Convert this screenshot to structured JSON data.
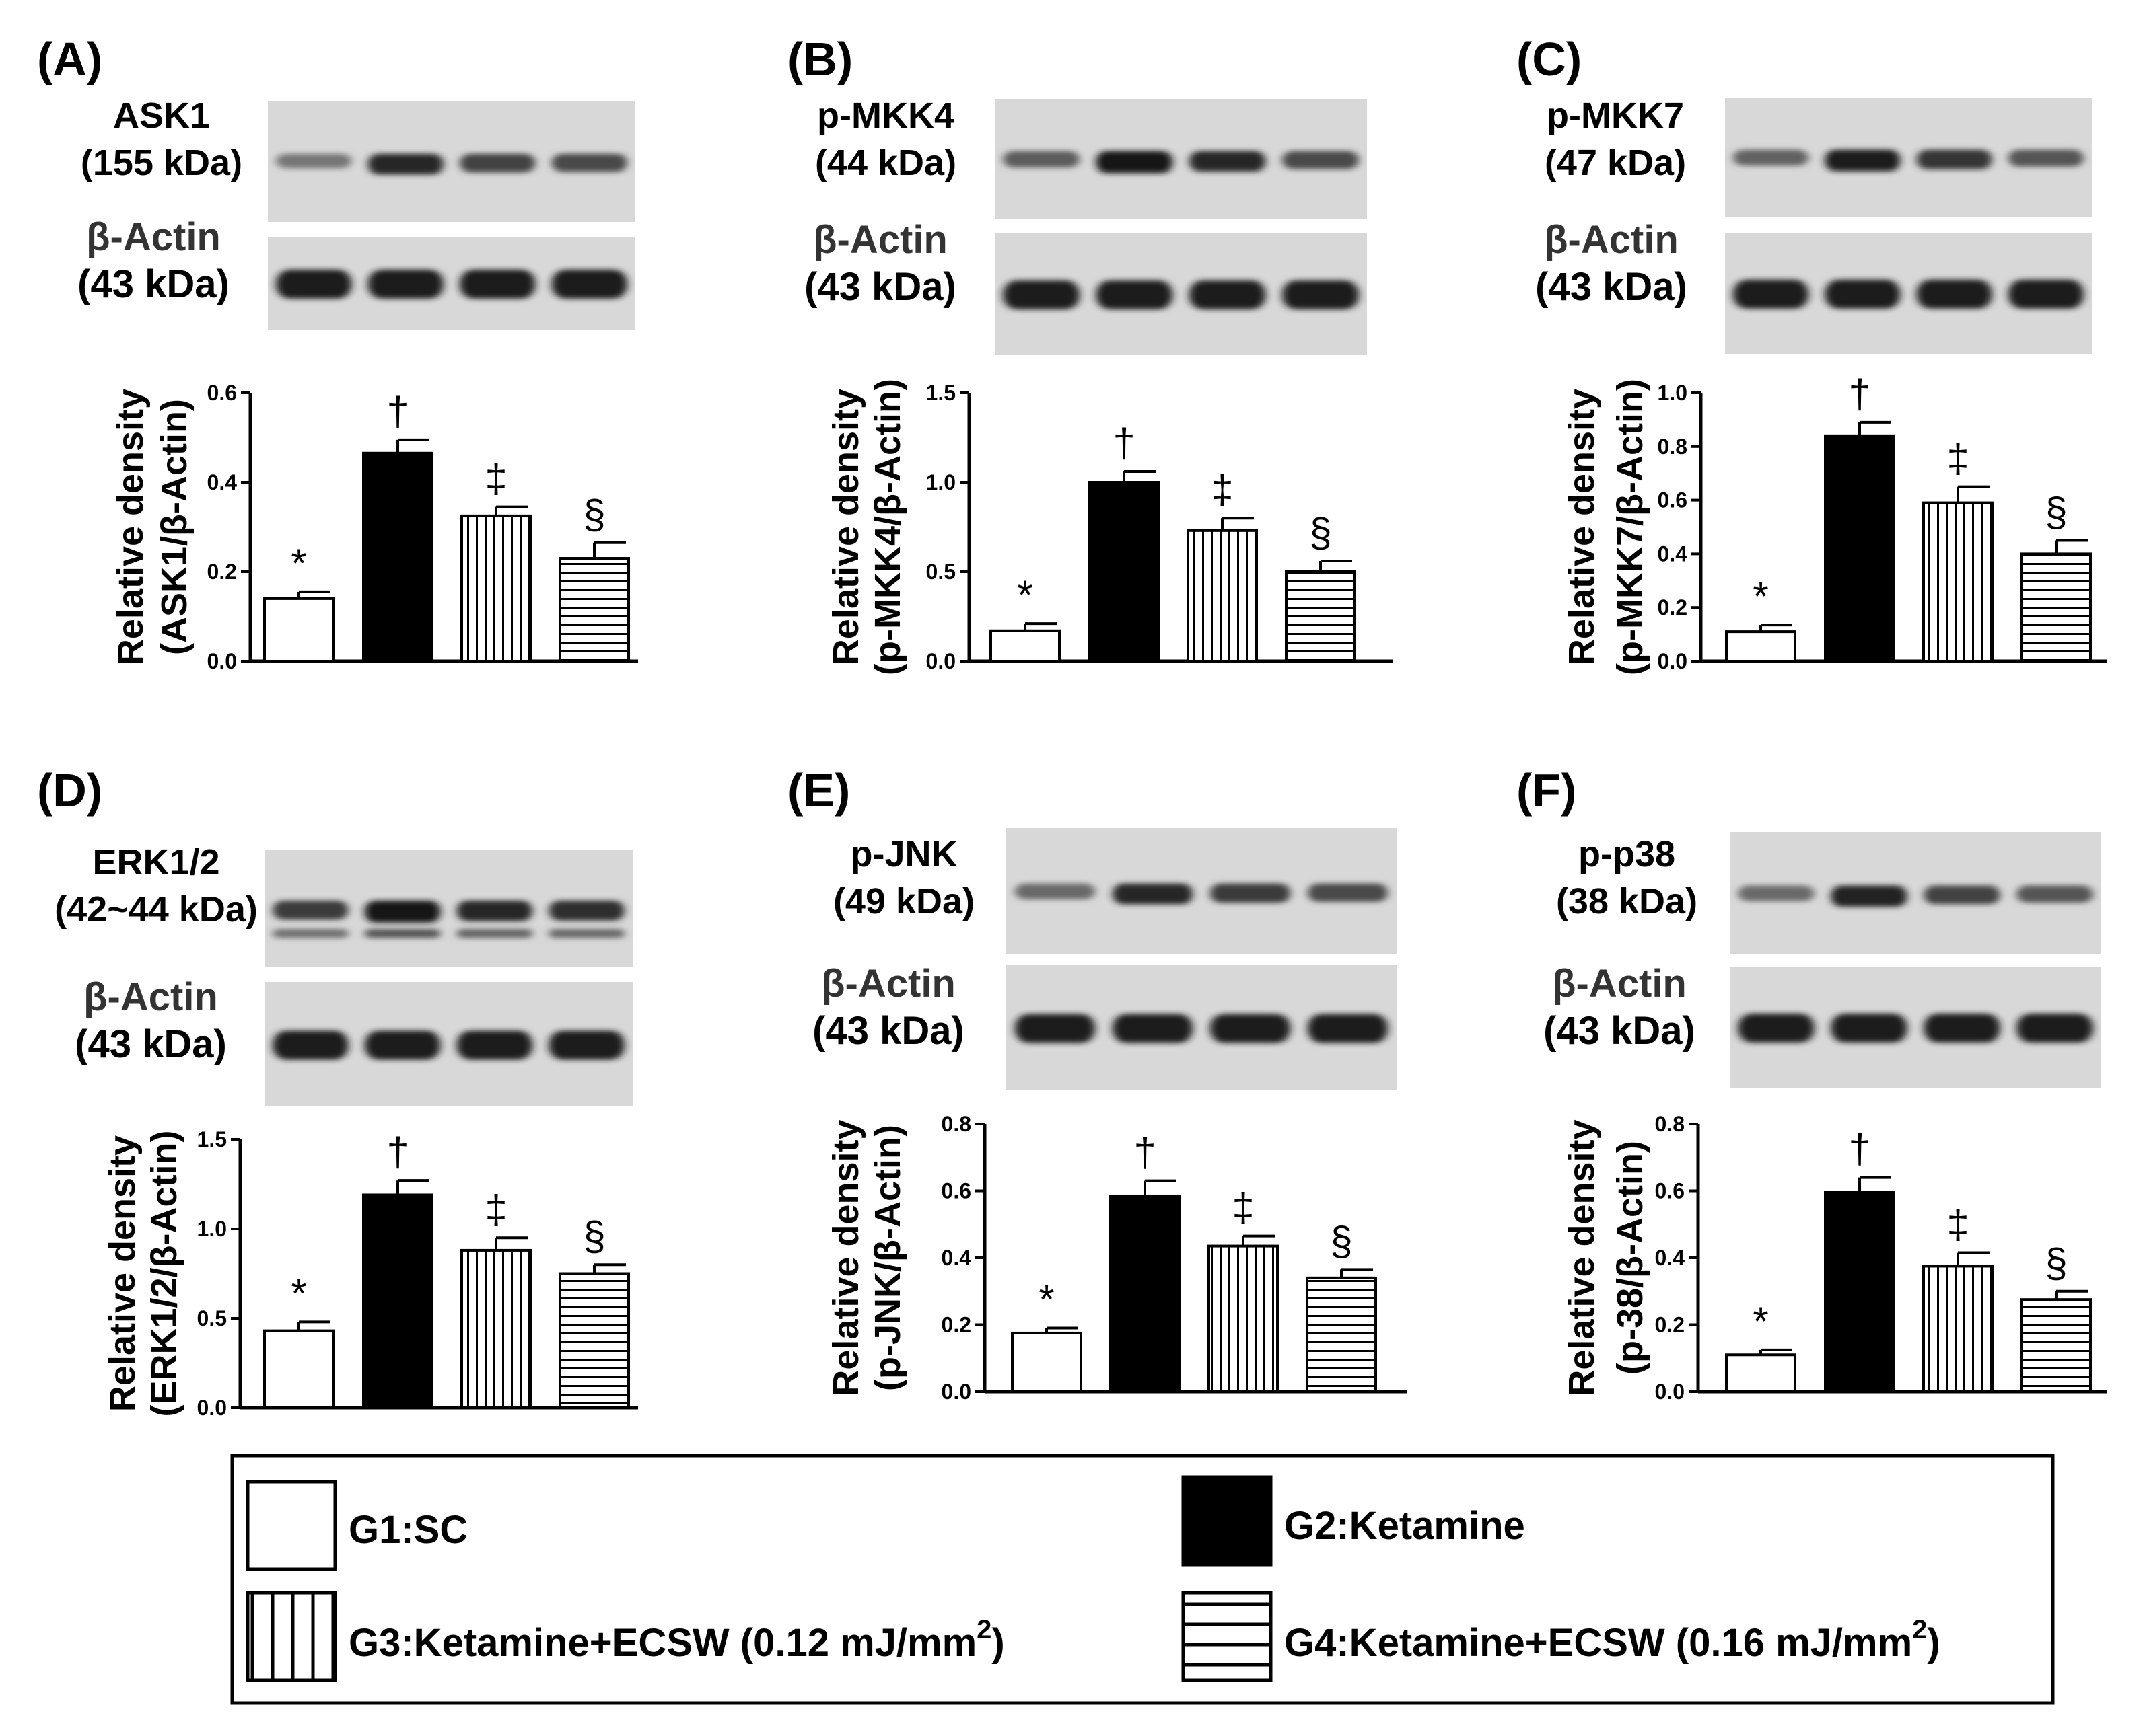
{
  "legend": {
    "items": [
      {
        "id": "g1",
        "label": "G1:SC",
        "pattern": "white"
      },
      {
        "id": "g2",
        "label": "G2:Ketamine",
        "pattern": "black"
      },
      {
        "id": "g3",
        "label_main": "G3:Ketamine+ECSW (0.12 mJ/mm",
        "label_sup": "2",
        "label_end": ")",
        "pattern": "vertical"
      },
      {
        "id": "g4",
        "label_main": "G4:Ketamine+ECSW (0.16 mJ/mm",
        "label_sup": "2",
        "label_end": ")",
        "pattern": "horizontal"
      }
    ]
  },
  "chart_data": [
    {
      "type": "bar",
      "panel": "(A)",
      "blot_label": [
        "ASK1",
        "(155 kDa)"
      ],
      "actin_label": [
        "β-Actin",
        "(43 kDa)"
      ],
      "ylabel": [
        "Relative density",
        "(ASK1/β-Actin)"
      ],
      "categories": [
        "G1",
        "G2",
        "G3",
        "G4"
      ],
      "values": [
        0.14,
        0.465,
        0.325,
        0.23
      ],
      "errors": [
        0.015,
        0.03,
        0.02,
        0.035
      ],
      "markers": [
        "*",
        "†",
        "‡",
        "§"
      ],
      "ylim": [
        0,
        0.6
      ],
      "yticks": [
        "0.0",
        "0.2",
        "0.4",
        "0.6"
      ],
      "bands": [
        0.25,
        0.85,
        0.65,
        0.6
      ]
    },
    {
      "type": "bar",
      "panel": "(B)",
      "blot_label": [
        "p-MKK4",
        "(44 kDa)"
      ],
      "actin_label": [
        "β-Actin",
        "(43 kDa)"
      ],
      "ylabel": [
        "Relative density",
        "(p-MKK4/β-Actin)"
      ],
      "categories": [
        "G1",
        "G2",
        "G3",
        "G4"
      ],
      "values": [
        0.17,
        1.0,
        0.73,
        0.5
      ],
      "errors": [
        0.04,
        0.06,
        0.07,
        0.06
      ],
      "markers": [
        "*",
        "†",
        "‡",
        "§"
      ],
      "ylim": [
        0,
        1.5
      ],
      "yticks": [
        "0.0",
        "0.5",
        "1.0",
        "1.5"
      ],
      "bands": [
        0.45,
        1.0,
        0.85,
        0.6
      ]
    },
    {
      "type": "bar",
      "panel": "(C)",
      "blot_label": [
        "p-MKK7",
        "(47 kDa)"
      ],
      "actin_label": [
        "β-Actin",
        "(43 kDa)"
      ],
      "ylabel": [
        "Relative density",
        "(p-MKK7/β-Actin)"
      ],
      "categories": [
        "G1",
        "G2",
        "G3",
        "G4"
      ],
      "values": [
        0.11,
        0.84,
        0.59,
        0.4
      ],
      "errors": [
        0.025,
        0.05,
        0.06,
        0.05
      ],
      "markers": [
        "*",
        "†",
        "‡",
        "§"
      ],
      "ylim": [
        0,
        1.0
      ],
      "yticks": [
        "0.0",
        "0.2",
        "0.4",
        "0.6",
        "0.8",
        "1.0"
      ],
      "bands": [
        0.4,
        0.95,
        0.75,
        0.5
      ]
    },
    {
      "type": "bar",
      "panel": "(D)",
      "blot_label": [
        "ERK1/2",
        "(42~44 kDa)"
      ],
      "actin_label": [
        "β-Actin",
        "(43 kDa)"
      ],
      "ylabel": [
        "Relative density",
        "(ERK1/2/β-Actin)"
      ],
      "categories": [
        "G1",
        "G2",
        "G3",
        "G4"
      ],
      "values": [
        0.43,
        1.19,
        0.88,
        0.75
      ],
      "errors": [
        0.05,
        0.08,
        0.07,
        0.05
      ],
      "markers": [
        "*",
        "†",
        "‡",
        "§"
      ],
      "ylim": [
        0,
        1.5
      ],
      "yticks": [
        "0.0",
        "0.5",
        "1.0",
        "1.5"
      ],
      "bands": [
        0.7,
        1.0,
        0.85,
        0.8
      ]
    },
    {
      "type": "bar",
      "panel": "(E)",
      "blot_label": [
        "p-JNK",
        "(49 kDa)"
      ],
      "actin_label": [
        "β-Actin",
        "(43 kDa)"
      ],
      "ylabel": [
        "Relative density",
        "(p-JNK/β-Actin)"
      ],
      "categories": [
        "G1",
        "G2",
        "G3",
        "G4"
      ],
      "values": [
        0.175,
        0.585,
        0.435,
        0.34
      ],
      "errors": [
        0.015,
        0.045,
        0.03,
        0.025
      ],
      "markers": [
        "*",
        "†",
        "‡",
        "§"
      ],
      "ylim": [
        0,
        0.8
      ],
      "yticks": [
        "0.0",
        "0.2",
        "0.4",
        "0.6",
        "0.8"
      ],
      "bands": [
        0.35,
        0.85,
        0.7,
        0.6
      ]
    },
    {
      "type": "bar",
      "panel": "(F)",
      "blot_label": [
        "p-p38",
        "(38 kDa)"
      ],
      "actin_label": [
        "β-Actin",
        "(43 kDa)"
      ],
      "ylabel": [
        "Relative density",
        "(p-38/β-Actin)"
      ],
      "categories": [
        "G1",
        "G2",
        "G3",
        "G4"
      ],
      "values": [
        0.11,
        0.595,
        0.375,
        0.275
      ],
      "errors": [
        0.015,
        0.045,
        0.04,
        0.025
      ],
      "markers": [
        "*",
        "†",
        "‡",
        "§"
      ],
      "ylim": [
        0,
        0.8
      ],
      "yticks": [
        "0.0",
        "0.2",
        "0.4",
        "0.6",
        "0.8"
      ],
      "bands": [
        0.35,
        0.9,
        0.65,
        0.5
      ]
    }
  ]
}
